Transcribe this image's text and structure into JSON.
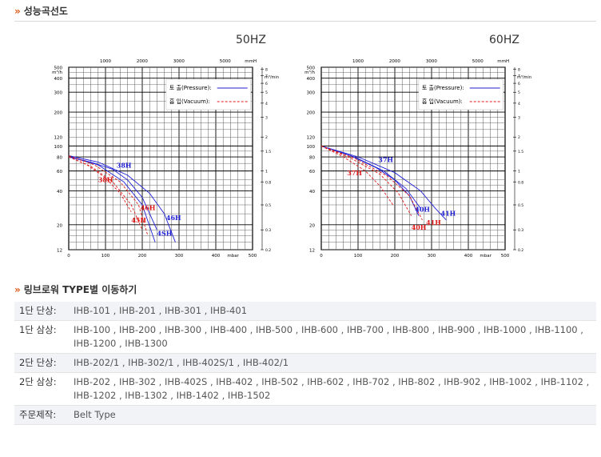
{
  "sections": {
    "performance_title": "성능곡선도",
    "models_title": "링브로워 TYPE별 이동하기",
    "arrow": "»"
  },
  "chart_data": [
    {
      "type": "line",
      "title": "50HZ",
      "x_unit": "mbar",
      "x_ticks": [
        "0",
        "100",
        "200",
        "300",
        "400",
        "500"
      ],
      "xlim": [
        0,
        500
      ],
      "x2_unit": "mmH",
      "x2_ticks": [
        "1000",
        "2000",
        "3000",
        "5000"
      ],
      "y_unit": "m³/h",
      "y_ticks": [
        "12",
        "20",
        "40",
        "60",
        "80",
        "100",
        "120",
        "200",
        "300",
        "400",
        "500"
      ],
      "ylim": [
        12,
        500
      ],
      "y_scale": "log",
      "y2_unit": "m³/min",
      "y2_ticks": [
        "0.2",
        "0.3",
        "0.5",
        "0.8",
        "1",
        "1.5",
        "2",
        "3",
        "4",
        "5",
        "6",
        "7",
        "8"
      ],
      "legend": [
        "토 출(Pressure):",
        "흡 입(Vacuum):"
      ],
      "legend_position": "top-right",
      "series": [
        {
          "name": "38H",
          "kind": "pressure",
          "color": "#1f1fd6",
          "x": [
            0,
            60,
            120,
            160,
            200,
            240
          ],
          "y": [
            80,
            72,
            62,
            50,
            35,
            18
          ]
        },
        {
          "name": "46H",
          "kind": "pressure",
          "color": "#1f1fd6",
          "x": [
            0,
            80,
            160,
            220,
            260,
            290
          ],
          "y": [
            82,
            72,
            55,
            38,
            25,
            14
          ]
        },
        {
          "name": "4SH",
          "kind": "pressure",
          "color": "#1f1fd6",
          "x": [
            0,
            80,
            150,
            200,
            235
          ],
          "y": [
            80,
            68,
            48,
            30,
            14
          ]
        },
        {
          "name": "38H",
          "kind": "vacuum",
          "color": "#e01919",
          "x": [
            0,
            50,
            100,
            140,
            170
          ],
          "y": [
            80,
            68,
            52,
            38,
            26
          ]
        },
        {
          "name": "45H",
          "kind": "vacuum",
          "color": "#e01919",
          "x": [
            0,
            60,
            120,
            170,
            200
          ],
          "y": [
            80,
            66,
            48,
            30,
            18
          ]
        },
        {
          "name": "46H",
          "kind": "vacuum",
          "color": "#e01919",
          "x": [
            0,
            70,
            140,
            190,
            215
          ],
          "y": [
            82,
            68,
            48,
            30,
            16
          ]
        }
      ],
      "labels": [
        {
          "text": "38H",
          "color": "#1f1fd6",
          "x": 130,
          "y": 64
        },
        {
          "text": "38H",
          "color": "#e01919",
          "x": 80,
          "y": 48
        },
        {
          "text": "46H",
          "color": "#e01919",
          "x": 195,
          "y": 27
        },
        {
          "text": "45H",
          "color": "#e01919",
          "x": 170,
          "y": 21
        },
        {
          "text": "4SH",
          "color": "#1f1fd6",
          "x": 240,
          "y": 16
        },
        {
          "text": "46H",
          "color": "#1f1fd6",
          "x": 265,
          "y": 22
        }
      ]
    },
    {
      "type": "line",
      "title": "60HZ",
      "x_unit": "mbar",
      "x_ticks": [
        "0",
        "100",
        "200",
        "300",
        "400",
        "500"
      ],
      "xlim": [
        0,
        500
      ],
      "x2_unit": "mmH",
      "x2_ticks": [
        "1000",
        "2000",
        "3000",
        "5000"
      ],
      "y_unit": "m³/h",
      "y_ticks": [
        "12",
        "20",
        "40",
        "60",
        "80",
        "100",
        "120",
        "200",
        "300",
        "400",
        "500"
      ],
      "ylim": [
        12,
        500
      ],
      "y_scale": "log",
      "y2_unit": "m³/min",
      "y2_ticks": [
        "0.2",
        "0.3",
        "0.5",
        "0.8",
        "1",
        "1.5",
        "2",
        "3",
        "4",
        "5",
        "6",
        "7",
        "8"
      ],
      "legend": [
        "토 출(Pressure):",
        "흡 입(Vacuum):"
      ],
      "legend_position": "top-right",
      "series": [
        {
          "name": "37H",
          "kind": "pressure",
          "color": "#1f1fd6",
          "x": [
            0,
            80,
            150,
            200,
            240,
            265
          ],
          "y": [
            100,
            82,
            64,
            50,
            36,
            24
          ]
        },
        {
          "name": "40H",
          "kind": "pressure",
          "color": "#1f1fd6",
          "x": [
            0,
            90,
            170,
            230,
            270
          ],
          "y": [
            100,
            80,
            60,
            42,
            28
          ]
        },
        {
          "name": "41H",
          "kind": "pressure",
          "color": "#1f1fd6",
          "x": [
            0,
            100,
            200,
            270,
            310,
            340
          ],
          "y": [
            100,
            80,
            58,
            40,
            28,
            22
          ]
        },
        {
          "name": "37H",
          "kind": "vacuum",
          "color": "#e01919",
          "x": [
            0,
            60,
            120,
            160,
            195
          ],
          "y": [
            100,
            80,
            60,
            44,
            30
          ]
        },
        {
          "name": "40H",
          "kind": "vacuum",
          "color": "#e01919",
          "x": [
            0,
            80,
            160,
            210,
            245
          ],
          "y": [
            100,
            78,
            56,
            38,
            24
          ]
        },
        {
          "name": "41H",
          "kind": "vacuum",
          "color": "#e01919",
          "x": [
            0,
            90,
            180,
            240,
            275
          ],
          "y": [
            100,
            78,
            54,
            36,
            22
          ]
        }
      ],
      "labels": [
        {
          "text": "37H",
          "color": "#1f1fd6",
          "x": 155,
          "y": 72
        },
        {
          "text": "37H",
          "color": "#e01919",
          "x": 70,
          "y": 55
        },
        {
          "text": "40H",
          "color": "#1f1fd6",
          "x": 255,
          "y": 26
        },
        {
          "text": "41H",
          "color": "#1f1fd6",
          "x": 325,
          "y": 24
        },
        {
          "text": "40H",
          "color": "#e01919",
          "x": 245,
          "y": 18
        },
        {
          "text": "41H",
          "color": "#e01919",
          "x": 285,
          "y": 20
        }
      ]
    }
  ],
  "table": {
    "rows": [
      {
        "label": "1단 단상:",
        "lines": [
          "IHB-101 , IHB-201 , IHB-301 , IHB-401"
        ],
        "shade": true
      },
      {
        "label": "1단 삼상:",
        "lines": [
          "IHB-100 , IHB-200 , IHB-300 , IHB-400 , IHB-500 , IHB-600 , IHB-700 , IHB-800 , IHB-900 , IHB-1000 , IHB-1100 ,",
          "IHB-1200 , IHB-1300"
        ],
        "shade": false
      },
      {
        "label": "2단 단상:",
        "lines": [
          "IHB-202/1 , IHB-302/1 , IHB-402S/1 , IHB-402/1"
        ],
        "shade": true
      },
      {
        "label": "2단 삼상:",
        "lines": [
          "IHB-202 , IHB-302 , IHB-402S , IHB-402 , IHB-502 , IHB-602 , IHB-702 , IHB-802 , IHB-902 , IHB-1002 , IHB-1102 ,",
          "IHB-1202 , IHB-1302 , IHB-1402 , IHB-1502"
        ],
        "shade": false
      },
      {
        "label": "주문제작:",
        "lines": [
          "Belt Type"
        ],
        "shade": true
      }
    ]
  }
}
